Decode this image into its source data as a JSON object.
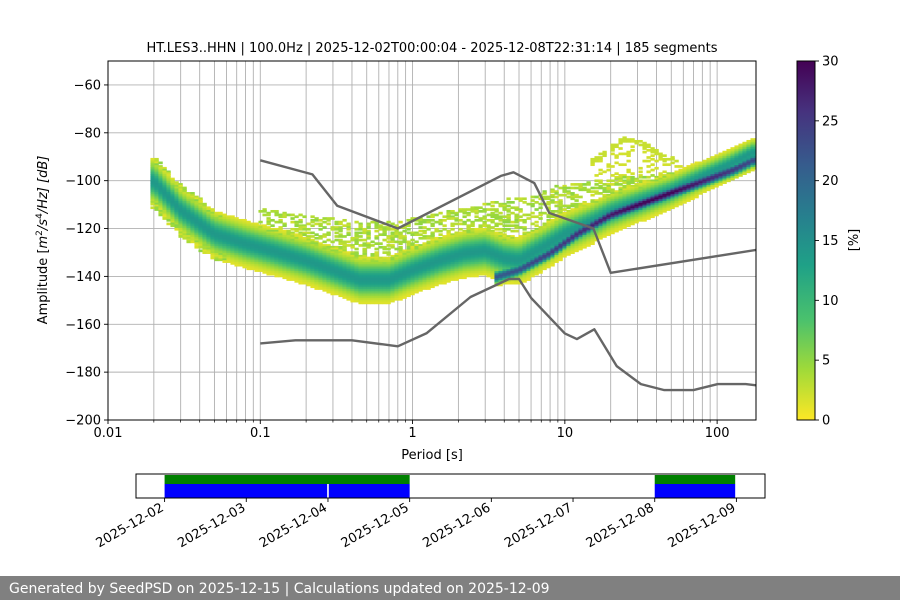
{
  "colors": {
    "background": "#ffffff",
    "grid": "#b0b0b0",
    "noise_model": "#666666",
    "coverage_data": "#0000ff",
    "coverage_psd": "#008000",
    "footer_bg": "#808080",
    "footer_text": "#ffffff"
  },
  "footer": {
    "text": "Generated by SeedPSD on 2025-12-15 | Calculations updated on 2025-12-09"
  },
  "chart_data": [
    {
      "type": "heatmap",
      "title": "HT.LES3..HHN | 100.0Hz | 2025-12-02T00:00:04 - 2025-12-08T22:31:14 | 185 segments",
      "xlabel": "Period [s]",
      "ylabel_parts": {
        "prefix": "Amplitude [",
        "m": "m",
        "exp2": "2",
        "s": "/s",
        "exp4": "4",
        "suffix": "/Hz] [dB]"
      },
      "xscale": "log",
      "xlim": [
        0.01,
        180
      ],
      "ylim": [
        -200,
        -50
      ],
      "x_ticks": [
        {
          "value": 0.01,
          "label": "0.01"
        },
        {
          "value": 0.1,
          "label": "0.1"
        },
        {
          "value": 1,
          "label": "1"
        },
        {
          "value": 10,
          "label": "10"
        },
        {
          "value": 100,
          "label": "100"
        }
      ],
      "y_ticks": [
        {
          "value": -60,
          "label": "−60"
        },
        {
          "value": -80,
          "label": "−80"
        },
        {
          "value": -100,
          "label": "−100"
        },
        {
          "value": -120,
          "label": "−120"
        },
        {
          "value": -140,
          "label": "−140"
        },
        {
          "value": -160,
          "label": "−160"
        },
        {
          "value": -180,
          "label": "−180"
        },
        {
          "value": -200,
          "label": "−200"
        }
      ],
      "grid": true,
      "colorbar": {
        "label": "[%]",
        "range": [
          0,
          30
        ],
        "ticks": [
          {
            "value": 0,
            "label": "0"
          },
          {
            "value": 5,
            "label": "5"
          },
          {
            "value": 10,
            "label": "10"
          },
          {
            "value": 15,
            "label": "15"
          },
          {
            "value": 20,
            "label": "20"
          },
          {
            "value": 25,
            "label": "25"
          },
          {
            "value": 30,
            "label": "30"
          }
        ],
        "colormap_stops": [
          "#fde725",
          "#a0da39",
          "#4ac16d",
          "#1fa187",
          "#277f8e",
          "#365c8d",
          "#46327e",
          "#440154"
        ]
      },
      "main_band": [
        [
          0.02,
          -100
        ],
        [
          0.03,
          -112
        ],
        [
          0.05,
          -122
        ],
        [
          0.08,
          -126
        ],
        [
          0.12,
          -129
        ],
        [
          0.2,
          -133
        ],
        [
          0.3,
          -137
        ],
        [
          0.45,
          -141
        ],
        [
          0.7,
          -141
        ],
        [
          1.0,
          -137
        ],
        [
          1.5,
          -133
        ],
        [
          2.2,
          -130
        ],
        [
          3.0,
          -129
        ],
        [
          4.0,
          -132
        ],
        [
          5.0,
          -133
        ],
        [
          7.0,
          -128
        ],
        [
          10.0,
          -122
        ],
        [
          15.0,
          -117
        ],
        [
          20.0,
          -113
        ],
        [
          30.0,
          -109
        ],
        [
          50.0,
          -104
        ],
        [
          80.0,
          -98
        ],
        [
          120.0,
          -93
        ],
        [
          170.0,
          -88
        ]
      ],
      "upper_tail": [
        [
          0.1,
          -113
        ],
        [
          0.2,
          -116
        ],
        [
          0.4,
          -118
        ],
        [
          0.8,
          -118
        ],
        [
          1.5,
          -115
        ],
        [
          3.0,
          -111
        ],
        [
          5.0,
          -108
        ],
        [
          8.0,
          -104
        ],
        [
          13.0,
          -102
        ],
        [
          22.0,
          -100
        ],
        [
          40.0,
          -99
        ],
        [
          80.0,
          -97
        ],
        [
          170.0,
          -93
        ]
      ],
      "bump": [
        [
          15.0,
          -92
        ],
        [
          20.0,
          -86
        ],
        [
          25.0,
          -82
        ],
        [
          32.0,
          -84
        ],
        [
          45.0,
          -90
        ],
        [
          60.0,
          -92
        ]
      ],
      "hot_trace": [
        [
          3.5,
          -140
        ],
        [
          5.0,
          -137
        ],
        [
          8.0,
          -130
        ],
        [
          12.0,
          -122
        ],
        [
          20.0,
          -114
        ],
        [
          40.0,
          -107
        ],
        [
          80.0,
          -100
        ],
        [
          130.0,
          -95
        ],
        [
          175.0,
          -91
        ]
      ],
      "series": [
        {
          "name": "NHNM",
          "points": [
            [
              0.1,
              -91.5
            ],
            [
              0.22,
              -97.4
            ],
            [
              0.32,
              -110.5
            ],
            [
              0.8,
              -120
            ],
            [
              3.8,
              -98
            ],
            [
              4.6,
              -96.5
            ],
            [
              6.3,
              -101
            ],
            [
              7.9,
              -113.5
            ],
            [
              15.4,
              -120
            ],
            [
              20.0,
              -138.5
            ],
            [
              354.8,
              -126
            ]
          ]
        },
        {
          "name": "NLNM",
          "points": [
            [
              0.1,
              -168
            ],
            [
              0.17,
              -166.7
            ],
            [
              0.4,
              -166.7
            ],
            [
              0.8,
              -169.2
            ],
            [
              1.24,
              -163.7
            ],
            [
              2.4,
              -148.6
            ],
            [
              4.3,
              -141.1
            ],
            [
              5.0,
              -141.1
            ],
            [
              6.0,
              -149
            ],
            [
              10.0,
              -163.8
            ],
            [
              12.0,
              -166.2
            ],
            [
              15.6,
              -162.1
            ],
            [
              21.9,
              -177.5
            ],
            [
              31.6,
              -185
            ],
            [
              45.0,
              -187.5
            ],
            [
              70.0,
              -187.5
            ],
            [
              101.0,
              -185
            ],
            [
              154.0,
              -185
            ],
            [
              328.0,
              -187.5
            ]
          ]
        }
      ]
    },
    {
      "type": "timeline",
      "x_ticks": [
        "2025-12-02",
        "2025-12-03",
        "2025-12-04",
        "2025-12-05",
        "2025-12-06",
        "2025-12-07",
        "2025-12-08",
        "2025-12-09"
      ],
      "x_range_days": [
        -0.35,
        7.35
      ],
      "data_segments_days": [
        [
          0.0,
          1.99
        ],
        [
          2.01,
          3.0
        ],
        [
          6.0,
          6.985
        ]
      ],
      "psd_segments_days": [
        [
          0.0,
          3.0
        ],
        [
          6.0,
          6.985
        ]
      ]
    }
  ]
}
